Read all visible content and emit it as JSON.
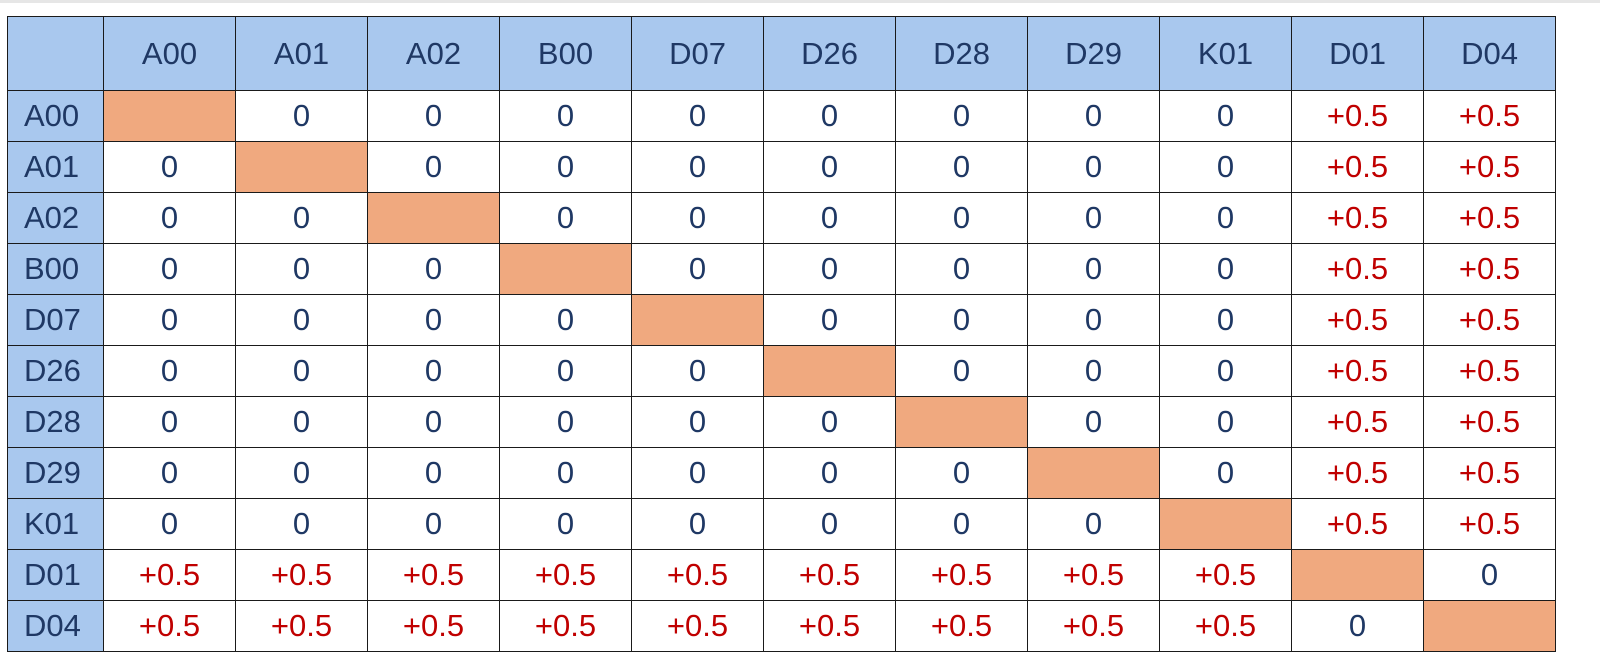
{
  "matrix": {
    "corner_label": "",
    "column_headers": [
      "A00",
      "A01",
      "A02",
      "B00",
      "D07",
      "D26",
      "D28",
      "D29",
      "K01",
      "D01",
      "D04"
    ],
    "rows": [
      {
        "label": "A00",
        "cells": [
          "",
          "0",
          "0",
          "0",
          "0",
          "0",
          "0",
          "0",
          "0",
          "+0.5",
          "+0.5"
        ]
      },
      {
        "label": "A01",
        "cells": [
          "0",
          "",
          "0",
          "0",
          "0",
          "0",
          "0",
          "0",
          "0",
          "+0.5",
          "+0.5"
        ]
      },
      {
        "label": "A02",
        "cells": [
          "0",
          "0",
          "",
          "0",
          "0",
          "0",
          "0",
          "0",
          "0",
          "+0.5",
          "+0.5"
        ]
      },
      {
        "label": "B00",
        "cells": [
          "0",
          "0",
          "0",
          "",
          "0",
          "0",
          "0",
          "0",
          "0",
          "+0.5",
          "+0.5"
        ]
      },
      {
        "label": "D07",
        "cells": [
          "0",
          "0",
          "0",
          "0",
          "",
          "0",
          "0",
          "0",
          "0",
          "+0.5",
          "+0.5"
        ]
      },
      {
        "label": "D26",
        "cells": [
          "0",
          "0",
          "0",
          "0",
          "0",
          "",
          "0",
          "0",
          "0",
          "+0.5",
          "+0.5"
        ]
      },
      {
        "label": "D28",
        "cells": [
          "0",
          "0",
          "0",
          "0",
          "0",
          "0",
          "",
          "0",
          "0",
          "+0.5",
          "+0.5"
        ]
      },
      {
        "label": "D29",
        "cells": [
          "0",
          "0",
          "0",
          "0",
          "0",
          "0",
          "0",
          "",
          "0",
          "+0.5",
          "+0.5"
        ]
      },
      {
        "label": "K01",
        "cells": [
          "0",
          "0",
          "0",
          "0",
          "0",
          "0",
          "0",
          "0",
          "",
          "+0.5",
          "+0.5"
        ]
      },
      {
        "label": "D01",
        "cells": [
          "+0.5",
          "+0.5",
          "+0.5",
          "+0.5",
          "+0.5",
          "+0.5",
          "+0.5",
          "+0.5",
          "+0.5",
          "",
          "0"
        ]
      },
      {
        "label": "D04",
        "cells": [
          "+0.5",
          "+0.5",
          "+0.5",
          "+0.5",
          "+0.5",
          "+0.5",
          "+0.5",
          "+0.5",
          "+0.5",
          "0",
          ""
        ]
      }
    ]
  },
  "colors": {
    "header_fill": "#a9c8ee",
    "header_text": "#1f3864",
    "zero_text": "#1f3864",
    "positive_text": "#c00000",
    "diagonal_fill": "#f0a97f",
    "gridline": "#1a1a1a"
  }
}
